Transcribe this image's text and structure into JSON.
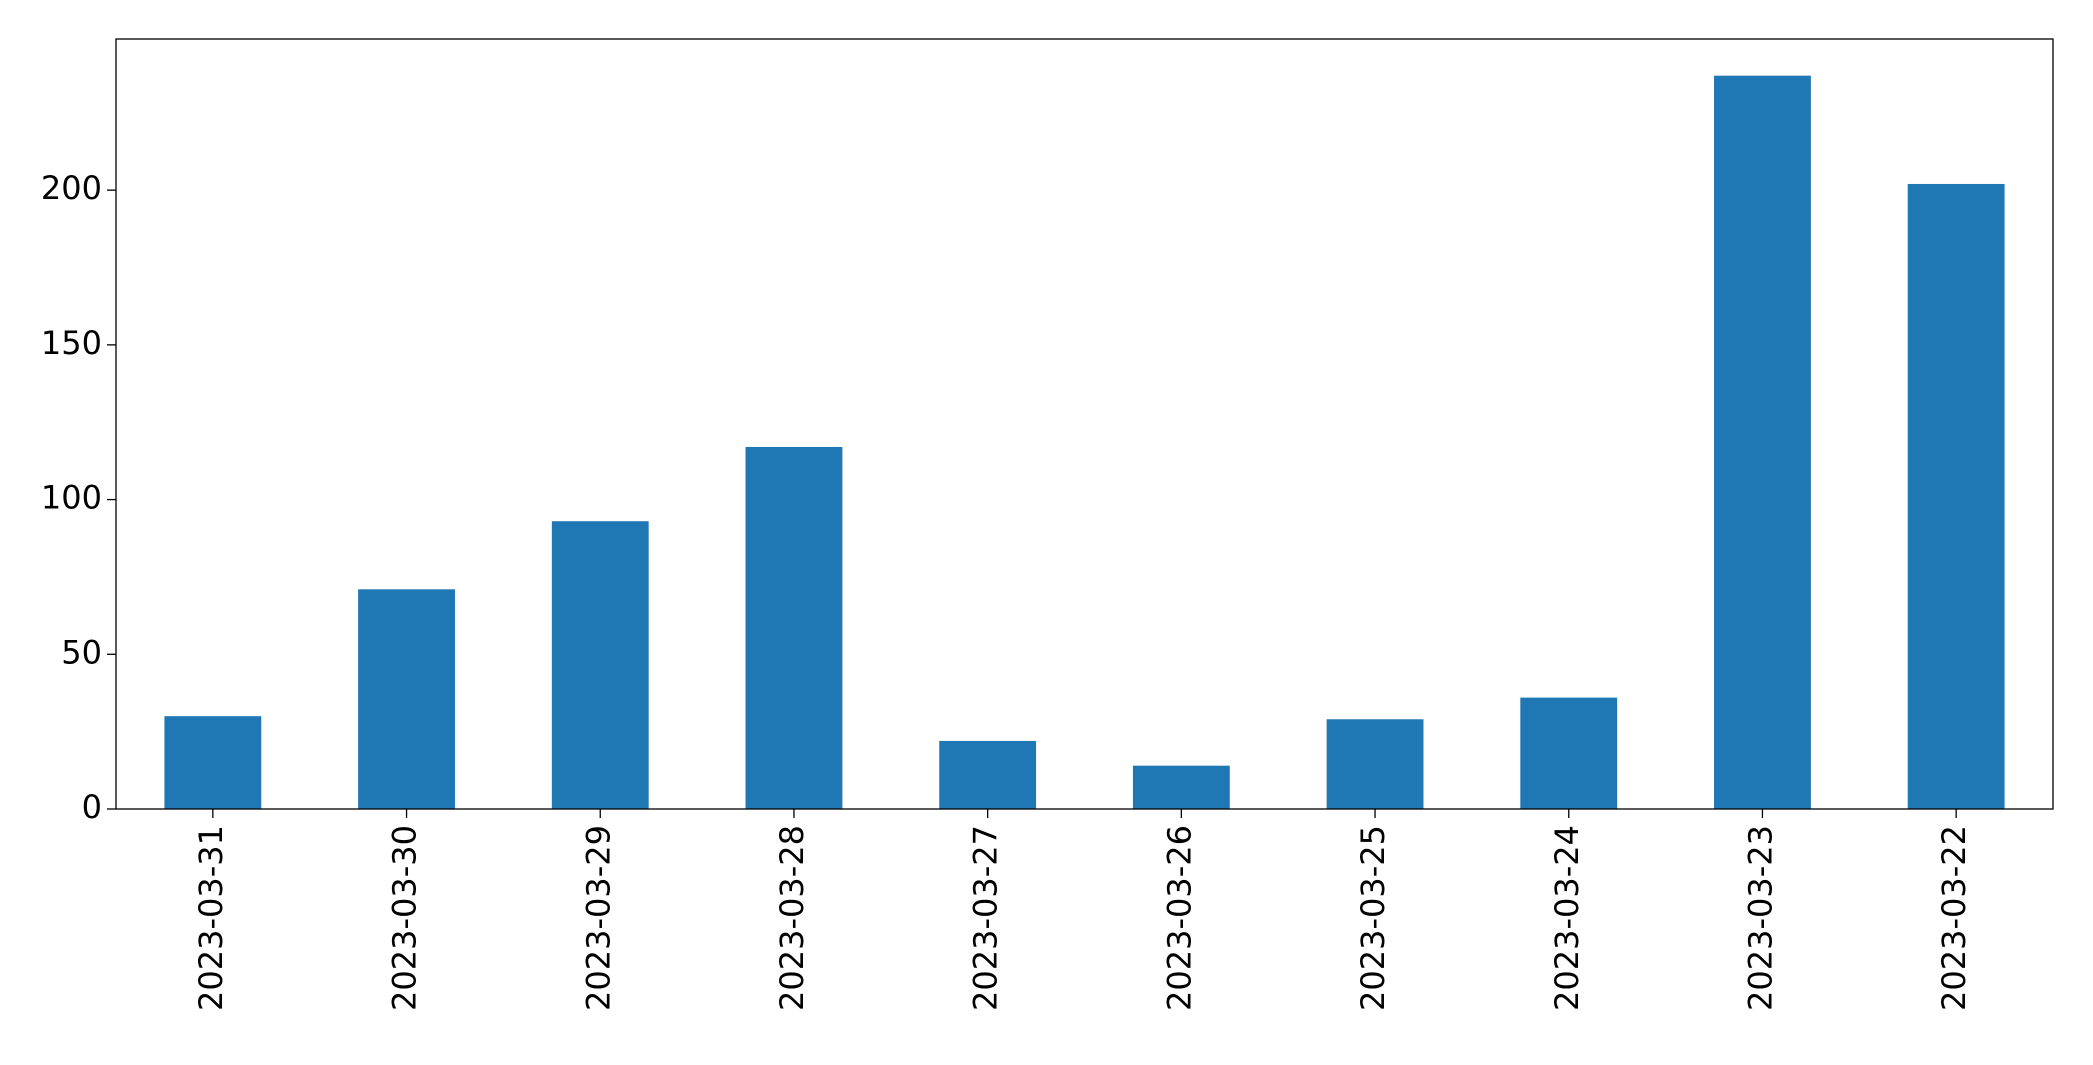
{
  "chart_data": {
    "type": "bar",
    "categories": [
      "2023-03-31",
      "2023-03-30",
      "2023-03-29",
      "2023-03-28",
      "2023-03-27",
      "2023-03-26",
      "2023-03-25",
      "2023-03-24",
      "2023-03-23",
      "2023-03-22"
    ],
    "values": [
      30,
      71,
      93,
      117,
      22,
      14,
      29,
      36,
      237,
      202
    ],
    "color": "#1f77b4",
    "ylim": [
      0,
      248.85
    ],
    "yticks": [
      0,
      50,
      100,
      150,
      200
    ],
    "grid": false
  }
}
